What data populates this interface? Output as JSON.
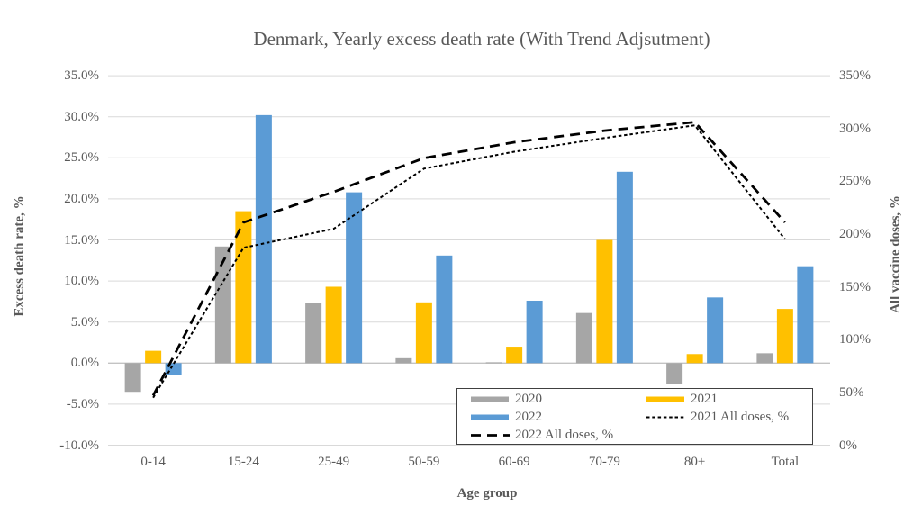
{
  "chart_data": {
    "type": "bar",
    "title": "Denmark, Yearly excess death rate (With Trend Adjsutment)",
    "xlabel": "Age group",
    "ylabel_left": "Excess death rate, %",
    "ylabel_right": "All vaccine doses, %",
    "categories": [
      "0-14",
      "15-24",
      "25-49",
      "50-59",
      "60-69",
      "70-79",
      "80+",
      "Total"
    ],
    "series": [
      {
        "name": "2020",
        "type": "bar",
        "axis": "left",
        "color": "#a6a6a6",
        "values": [
          -3.5,
          14.2,
          7.3,
          0.6,
          0.1,
          6.1,
          -2.5,
          1.2
        ]
      },
      {
        "name": "2021",
        "type": "bar",
        "axis": "left",
        "color": "#ffc000",
        "values": [
          1.5,
          18.5,
          9.3,
          7.4,
          2.0,
          15.0,
          1.1,
          6.6
        ]
      },
      {
        "name": "2022",
        "type": "bar",
        "axis": "left",
        "color": "#5b9bd5",
        "values": [
          -1.4,
          30.2,
          20.8,
          13.1,
          7.6,
          23.3,
          8.0,
          11.8
        ]
      },
      {
        "name": "2021 All doses, %",
        "type": "line",
        "axis": "right",
        "color": "#000000",
        "dash": "dotted",
        "values": [
          45,
          187,
          205,
          262,
          278,
          291,
          303,
          195
        ]
      },
      {
        "name": "2022 All doses, %",
        "type": "line",
        "axis": "right",
        "color": "#000000",
        "dash": "dashed",
        "values": [
          47,
          211,
          240,
          272,
          287,
          298,
          306,
          211
        ]
      }
    ],
    "y_left": {
      "min": -10,
      "max": 35,
      "step": 5,
      "tick_labels": [
        "35.0%",
        "30.0%",
        "25.0%",
        "20.0%",
        "15.0%",
        "10.0%",
        "5.0%",
        "0.0%",
        "-5.0%",
        "-10.0%"
      ]
    },
    "y_right": {
      "min": 0,
      "max": 350,
      "step": 50,
      "tick_labels": [
        "350%",
        "300%",
        "250%",
        "200%",
        "150%",
        "100%",
        "50%",
        "0%"
      ]
    },
    "grid": true,
    "legend_position": "inside-bottom-right",
    "colors": {
      "grid": "#d9d9d9",
      "zero_axis": "#c3c3c3",
      "text": "#595959",
      "line": "#000000",
      "legend_border": "#404040"
    }
  }
}
